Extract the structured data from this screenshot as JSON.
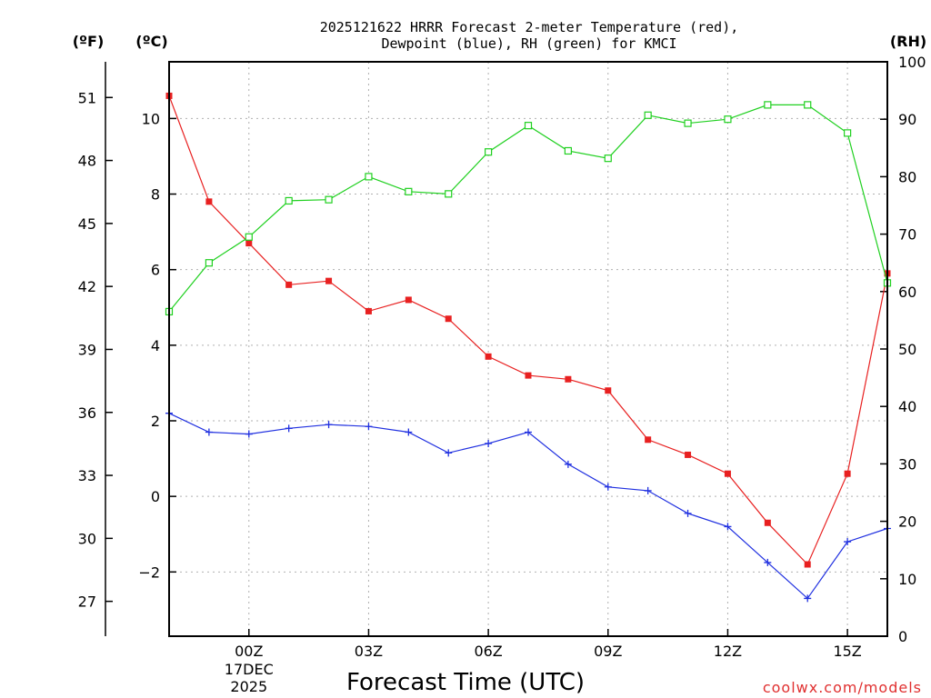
{
  "chart_data": {
    "type": "line",
    "title_line1": "2025121622 HRRR Forecast 2-meter Temperature (red),",
    "title_line2": "Dewpoint (blue), RH (green) for KMCI",
    "xlabel": "Forecast Time (UTC)",
    "credit": "coolwx.com/models",
    "units": {
      "fahrenheit": "(ºF)",
      "celsius": "(ºC)",
      "rh": "(RH)"
    },
    "x_hours": [
      -2,
      -1,
      0,
      1,
      2,
      3,
      4,
      5,
      6,
      7,
      8,
      9,
      10,
      11,
      12,
      13,
      14,
      15,
      16
    ],
    "x_ticks": [
      {
        "hour": 0,
        "label": "00Z",
        "date_line1": "17DEC",
        "date_line2": "2025"
      },
      {
        "hour": 3,
        "label": "03Z"
      },
      {
        "hour": 6,
        "label": "06Z"
      },
      {
        "hour": 9,
        "label": "09Z"
      },
      {
        "hour": 12,
        "label": "12Z"
      },
      {
        "hour": 15,
        "label": "15Z"
      }
    ],
    "xlim": [
      -2,
      16
    ],
    "celsius_axis": {
      "ylim": [
        -3.7,
        11.5
      ],
      "ticks": [
        "-2",
        "0",
        "2",
        "4",
        "6",
        "8",
        "10"
      ]
    },
    "fahrenheit_axis": {
      "ticks": [
        "27",
        "30",
        "33",
        "36",
        "39",
        "42",
        "45",
        "48",
        "51"
      ]
    },
    "rh_axis": {
      "ylim": [
        0,
        100
      ],
      "ticks": [
        "0",
        "10",
        "20",
        "30",
        "40",
        "50",
        "60",
        "70",
        "80",
        "90",
        "100"
      ]
    },
    "series": [
      {
        "name": "Temperature",
        "axis": "celsius",
        "color": "#e82020",
        "marker": "filled-square",
        "values": [
          10.6,
          7.8,
          6.7,
          5.6,
          5.7,
          4.9,
          5.2,
          4.7,
          3.7,
          3.2,
          3.1,
          2.8,
          1.5,
          1.1,
          0.6,
          -0.7,
          -1.8,
          0.6,
          5.9
        ]
      },
      {
        "name": "Dewpoint",
        "axis": "celsius",
        "color": "#2030e0",
        "marker": "plus",
        "values": [
          2.2,
          1.7,
          1.65,
          1.8,
          1.9,
          1.85,
          1.7,
          1.15,
          1.4,
          1.7,
          0.85,
          0.25,
          0.15,
          -0.45,
          -0.8,
          -1.75,
          -2.7,
          -1.2,
          -0.85
        ]
      },
      {
        "name": "RH",
        "axis": "rh",
        "color": "#20d020",
        "marker": "open-square",
        "values": [
          56.5,
          65,
          69.5,
          75.8,
          76,
          80,
          77.4,
          77,
          84.3,
          88.9,
          84.5,
          83.2,
          90.7,
          89.3,
          90,
          92.5,
          92.5,
          87.6,
          61.5
        ]
      }
    ]
  }
}
